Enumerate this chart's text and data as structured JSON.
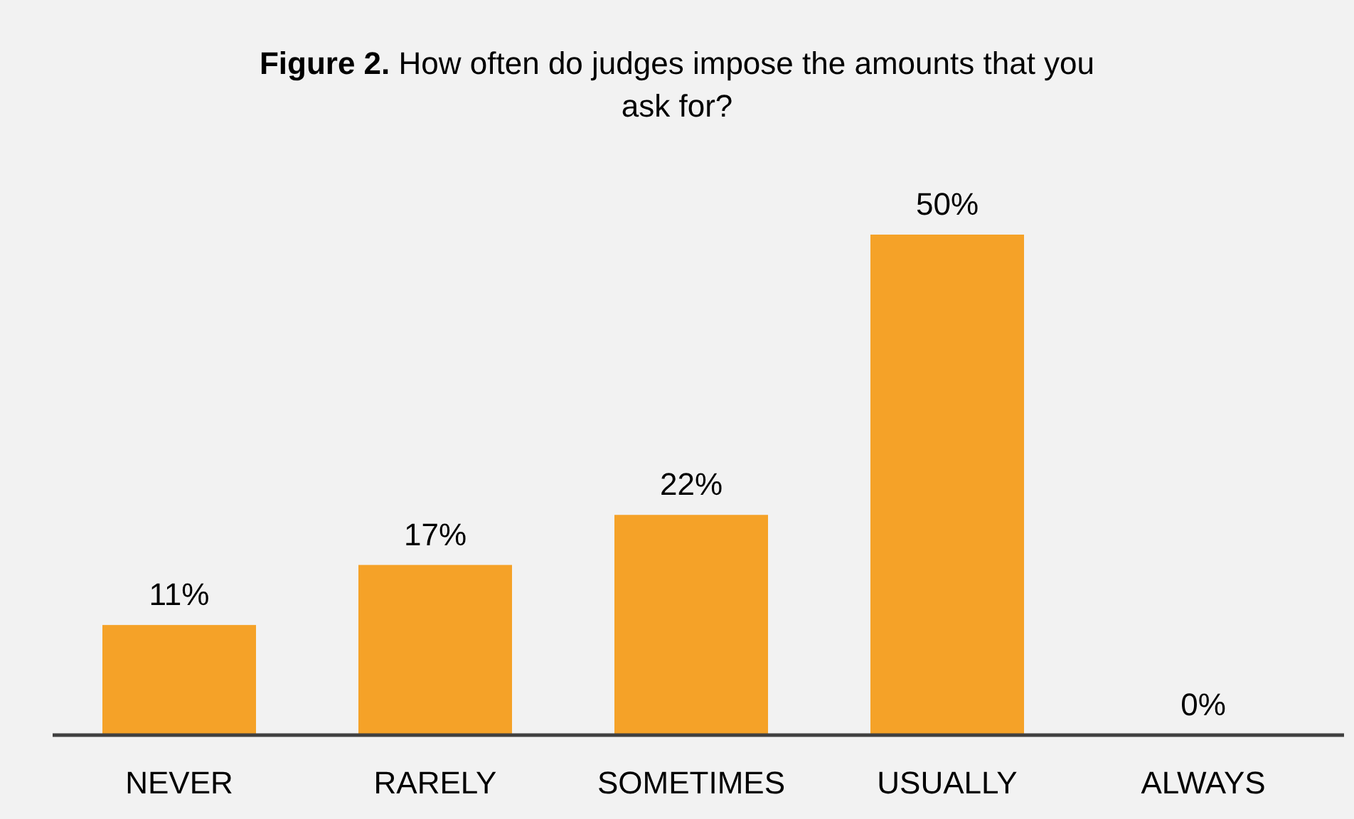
{
  "chart_data": {
    "type": "bar",
    "title": "Figure 2. How often do judges impose the amounts that you ask for?",
    "categories": [
      "NEVER",
      "RARELY",
      "SOMETIMES",
      "USUALLY",
      "ALWAYS"
    ],
    "values": [
      11,
      17,
      22,
      50,
      0
    ],
    "color": "#f5a228",
    "value_labels": [
      "11%",
      "17%",
      "22%",
      "50%",
      "0%"
    ]
  }
}
